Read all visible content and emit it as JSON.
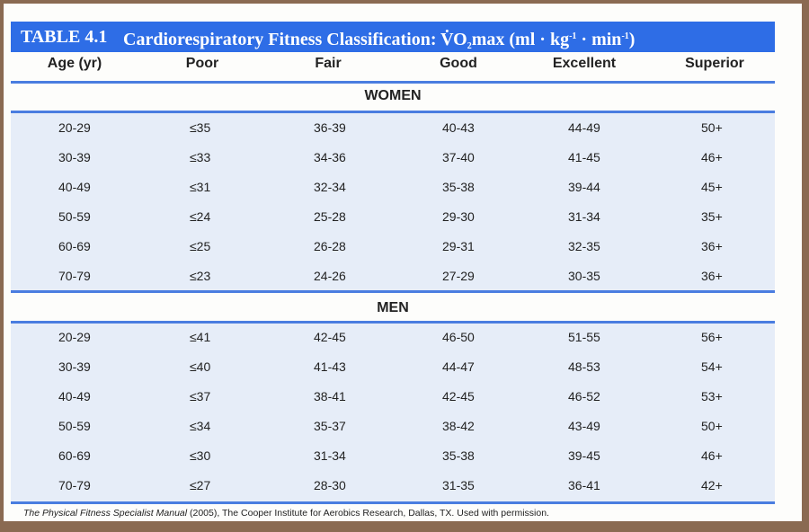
{
  "title": {
    "number": "TABLE 4.1",
    "text": "Cardiorespiratory Fitness Classification: V̇O",
    "sub": "2",
    "after": "max (ml · kg",
    "sup1": "-1",
    "mid": " · min",
    "sup2": "-1",
    "end": ")"
  },
  "columns": [
    "Age (yr)",
    "Poor",
    "Fair",
    "Good",
    "Excellent",
    "Superior"
  ],
  "women": {
    "label": "WOMEN",
    "rows": [
      [
        "20-29",
        "≤35",
        "36-39",
        "40-43",
        "44-49",
        "50+"
      ],
      [
        "30-39",
        "≤33",
        "34-36",
        "37-40",
        "41-45",
        "46+"
      ],
      [
        "40-49",
        "≤31",
        "32-34",
        "35-38",
        "39-44",
        "45+"
      ],
      [
        "50-59",
        "≤24",
        "25-28",
        "29-30",
        "31-34",
        "35+"
      ],
      [
        "60-69",
        "≤25",
        "26-28",
        "29-31",
        "32-35",
        "36+"
      ],
      [
        "70-79",
        "≤23",
        "24-26",
        "27-29",
        "30-35",
        "36+"
      ]
    ]
  },
  "men": {
    "label": "MEN",
    "rows": [
      [
        "20-29",
        "≤41",
        "42-45",
        "46-50",
        "51-55",
        "56+"
      ],
      [
        "30-39",
        "≤40",
        "41-43",
        "44-47",
        "48-53",
        "54+"
      ],
      [
        "40-49",
        "≤37",
        "38-41",
        "42-45",
        "46-52",
        "53+"
      ],
      [
        "50-59",
        "≤34",
        "35-37",
        "38-42",
        "43-49",
        "50+"
      ],
      [
        "60-69",
        "≤30",
        "31-34",
        "35-38",
        "39-45",
        "46+"
      ],
      [
        "70-79",
        "≤27",
        "28-30",
        "31-35",
        "36-41",
        "42+"
      ]
    ]
  },
  "footnote": {
    "source_title": "The Physical Fitness Specialist Manual",
    "rest": " (2005), The Cooper Institute for Aerobics Research, Dallas, TX. Used with permission."
  }
}
